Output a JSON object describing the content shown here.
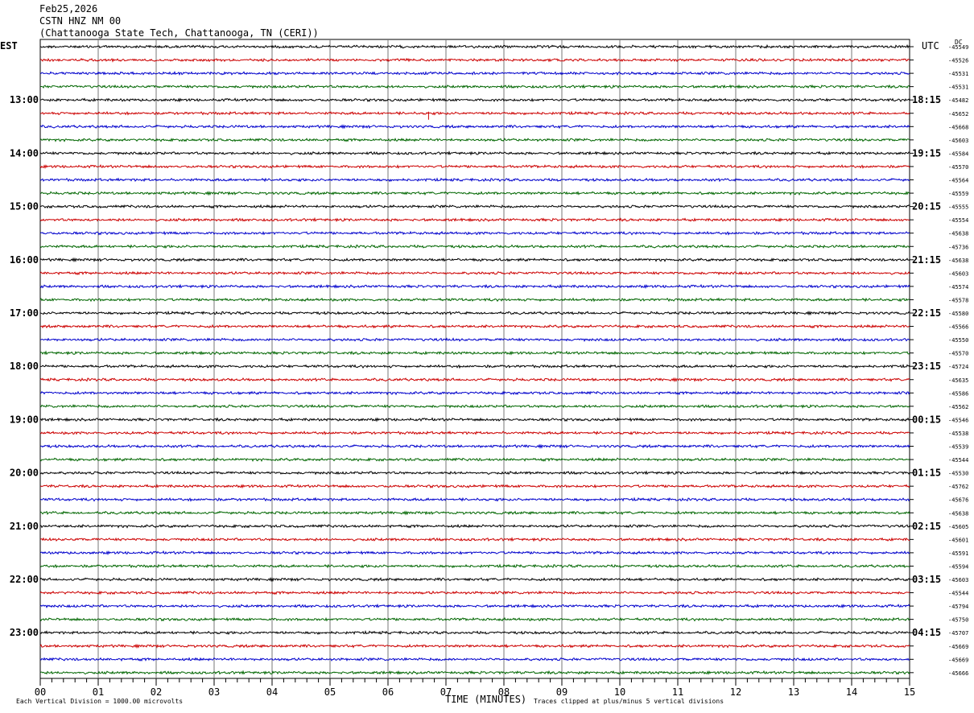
{
  "header": {
    "date": "Feb25,2026",
    "station": "CSTN HNZ NM 00",
    "location": "(Chattanooga State Tech, Chattanooga, TN (CERI))"
  },
  "left_axis_label": "EST",
  "right_axis_label": "UTC",
  "dc_label": "DC",
  "footer": {
    "scale_note": "Each Vertical Division = 1000.00 microvolts",
    "xlabel": "TIME (MINUTES)",
    "clip_note": "Traces clipped at plus/minus 5 vertical divisions"
  },
  "chart_data": {
    "type": "line",
    "title": "CSTN HNZ NM 00",
    "xlabel": "TIME (MINUTES)",
    "x_ticks": [
      "00",
      "01",
      "02",
      "03",
      "04",
      "05",
      "06",
      "07",
      "08",
      "09",
      "10",
      "11",
      "12",
      "13",
      "14",
      "15"
    ],
    "xlim": [
      0,
      15
    ],
    "est_hour_labels": [
      "13:00",
      "14:00",
      "15:00",
      "16:00",
      "17:00",
      "18:00",
      "19:00",
      "20:00",
      "21:00",
      "22:00",
      "23:00"
    ],
    "utc_hour_labels": [
      "18:15",
      "19:15",
      "20:15",
      "21:15",
      "22:15",
      "23:15",
      "00:15",
      "01:15",
      "02:15",
      "03:15",
      "04:15"
    ],
    "trace_colors": [
      "#000000",
      "#cc0000",
      "#0000cc",
      "#006600"
    ],
    "dc_offsets": [
      -45549,
      -45526,
      -45531,
      -45531,
      -45482,
      -45652,
      -45668,
      -45603,
      -45584,
      -45570,
      -45564,
      -45559,
      -45555,
      -45554,
      -45638,
      -45736,
      -45638,
      -45603,
      -45574,
      -45578,
      -45580,
      -45566,
      -45550,
      -45570,
      -45724,
      -45635,
      -45586,
      -45562,
      -45546,
      -45538,
      -45539,
      -45544,
      -45530,
      -45762,
      -45676,
      -45638,
      -45605,
      -45601,
      -45591,
      -45594,
      -45603,
      -45544,
      -45794,
      -45750,
      -45707,
      -45669,
      -45669,
      -45666
    ],
    "trace_count": 48,
    "grid": true
  }
}
